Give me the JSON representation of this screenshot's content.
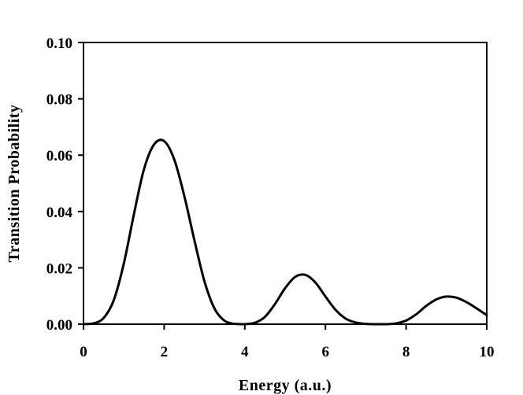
{
  "chart_data": {
    "type": "line",
    "title": "",
    "xlabel": "Energy (a.u.)",
    "ylabel": "Transition Probability",
    "xlim": [
      0,
      10
    ],
    "ylim": [
      0,
      0.1
    ],
    "x_ticks": [
      "0",
      "2",
      "4",
      "6",
      "8",
      "10"
    ],
    "y_ticks": [
      "0.00",
      "0.02",
      "0.04",
      "0.06",
      "0.08",
      "0.10"
    ],
    "grid": false,
    "legend": "none",
    "line_color": "#000000",
    "series": [
      {
        "x": [
          0.0,
          0.25,
          0.5,
          0.75,
          1.0,
          1.25,
          1.5,
          1.75,
          2.0,
          2.25,
          2.5,
          2.75,
          3.0,
          3.25,
          3.5,
          3.75,
          4.0,
          4.25,
          4.5,
          4.75,
          5.0,
          5.25,
          5.5,
          5.75,
          6.0,
          6.25,
          6.5,
          6.75,
          7.0,
          7.25,
          7.5,
          7.75,
          8.0,
          8.25,
          8.5,
          8.75,
          9.0,
          9.25,
          9.5,
          9.75,
          10.0
        ],
        "values": [
          0.0,
          0.0003,
          0.0022,
          0.0085,
          0.0215,
          0.039,
          0.055,
          0.0638,
          0.065,
          0.0585,
          0.0455,
          0.0298,
          0.0152,
          0.0055,
          0.0012,
          0.0001,
          0.0,
          0.0005,
          0.0026,
          0.0072,
          0.0128,
          0.0168,
          0.0175,
          0.0148,
          0.0098,
          0.0051,
          0.002,
          0.0006,
          0.0001,
          0.0,
          0.0,
          0.0003,
          0.0013,
          0.0035,
          0.0065,
          0.0088,
          0.0098,
          0.0094,
          0.0078,
          0.0056,
          0.0032
        ]
      }
    ]
  }
}
